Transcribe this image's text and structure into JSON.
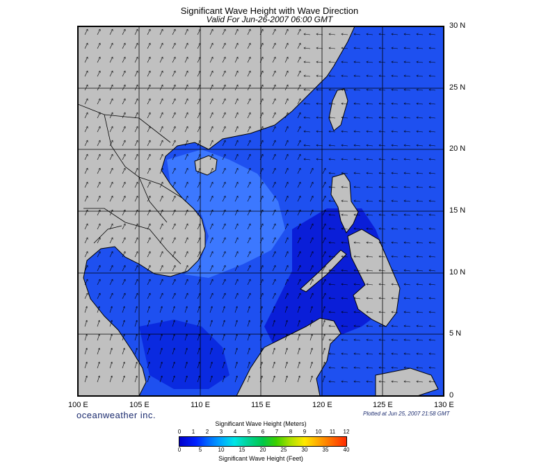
{
  "title": "Significant Wave Height with Wave Direction",
  "subtitle": "Valid For Jun-26-2007 06:00 GMT",
  "lon_labels": [
    "100 E",
    "105 E",
    "110 E",
    "115 E",
    "120 E",
    "125 E",
    "130 E"
  ],
  "lat_labels": [
    "30 N",
    "25 N",
    "20 N",
    "15 N",
    "10 N",
    "5 N",
    "0"
  ],
  "brand": "oceanweather inc.",
  "plotted": "Plotted at Jun 25, 2007 21:58 GMT",
  "legend": {
    "meters_title": "Significant Wave Height (Meters)",
    "feet_title": "Significant Wave Height (Feet)",
    "meters_ticks": [
      "0",
      "1",
      "2",
      "3",
      "4",
      "5",
      "6",
      "7",
      "8",
      "9",
      "10",
      "11",
      "12"
    ],
    "feet_ticks": [
      "0",
      "5",
      "10",
      "15",
      "20",
      "25",
      "30",
      "35",
      "40"
    ]
  },
  "colors": {
    "land": "#c0c0c0",
    "ocean_deep": "#0a1ed8",
    "ocean_mid": "#1e50f0",
    "ocean_light": "#3c78ff",
    "grid": "#000000"
  }
}
